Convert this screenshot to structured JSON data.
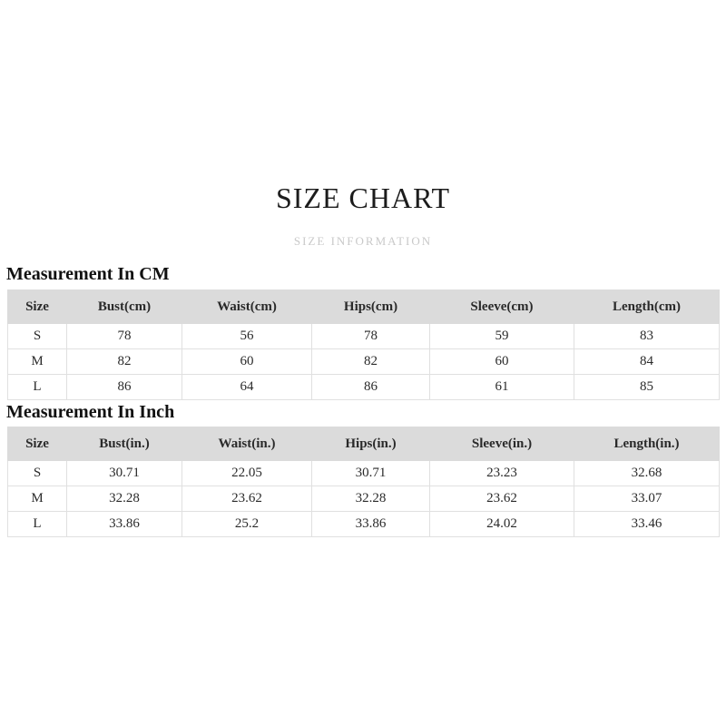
{
  "page": {
    "title": "SIZE CHART",
    "subtitle": "SIZE INFORMATION"
  },
  "colors": {
    "background": "#ffffff",
    "header_row_bg": "#dbdbdb",
    "table_border": "#e0e0e0",
    "text": "#2a2a2a",
    "subtitle_text": "#c9c9c9"
  },
  "tables": [
    {
      "heading": "Measurement In CM",
      "columns": [
        "Size",
        "Bust(cm)",
        "Waist(cm)",
        "Hips(cm)",
        "Sleeve(cm)",
        "Length(cm)"
      ],
      "rows": [
        [
          "S",
          "78",
          "56",
          "78",
          "59",
          "83"
        ],
        [
          "M",
          "82",
          "60",
          "82",
          "60",
          "84"
        ],
        [
          "L",
          "86",
          "64",
          "86",
          "61",
          "85"
        ]
      ]
    },
    {
      "heading": "Measurement In Inch",
      "columns": [
        "Size",
        "Bust(in.)",
        "Waist(in.)",
        "Hips(in.)",
        "Sleeve(in.)",
        "Length(in.)"
      ],
      "rows": [
        [
          "S",
          "30.71",
          "22.05",
          "30.71",
          "23.23",
          "32.68"
        ],
        [
          "M",
          "32.28",
          "23.62",
          "32.28",
          "23.62",
          "33.07"
        ],
        [
          "L",
          "33.86",
          "25.2",
          "33.86",
          "24.02",
          "33.46"
        ]
      ]
    }
  ]
}
